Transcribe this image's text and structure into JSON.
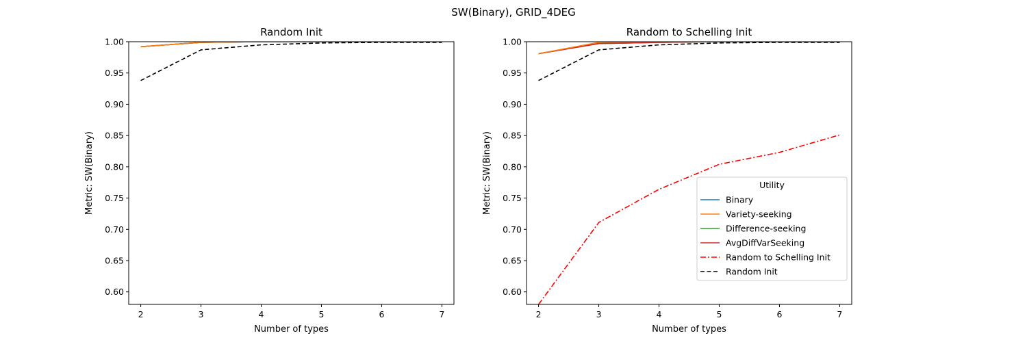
{
  "figure": {
    "title": "SW(Binary), GRID_4DEG"
  },
  "colors": {
    "Binary": "#1f77b4",
    "Variety-seeking": "#ff7f0e",
    "Difference-seeking": "#2ca02c",
    "AvgDiffVarSeeking": "#d62728",
    "Random to Schelling Init": "#ff0000",
    "Random Init": "#000000"
  },
  "legend": {
    "title": "Utility",
    "location": "lower-right of right panel",
    "entries": [
      {
        "label": "Binary",
        "style": "solid"
      },
      {
        "label": "Variety-seeking",
        "style": "solid"
      },
      {
        "label": "Difference-seeking",
        "style": "solid"
      },
      {
        "label": "AvgDiffVarSeeking",
        "style": "solid"
      },
      {
        "label": "Random to Schelling Init",
        "style": "dashdot"
      },
      {
        "label": "Random Init",
        "style": "dashed"
      }
    ]
  },
  "chart_data": [
    {
      "type": "line",
      "title": "Random Init",
      "xlabel": "Number of types",
      "ylabel": "Metric: SW(Binary)",
      "x": [
        2,
        3,
        4,
        5,
        6,
        7
      ],
      "xlim": [
        1.8,
        7.2
      ],
      "ylim": [
        0.58,
        1.0
      ],
      "xticks": [
        "2",
        "3",
        "4",
        "5",
        "6",
        "7"
      ],
      "yticks": [
        "0.60",
        "0.65",
        "0.70",
        "0.75",
        "0.80",
        "0.85",
        "0.90",
        "0.95",
        "1.00"
      ],
      "grid": false,
      "series": [
        {
          "name": "Binary",
          "style": "solid",
          "values": [
            0.992,
            0.999,
            1.0,
            1.0,
            1.0,
            1.0
          ]
        },
        {
          "name": "Difference-seeking",
          "style": "solid",
          "values": [
            0.992,
            0.999,
            1.0,
            1.0,
            1.0,
            1.0
          ]
        },
        {
          "name": "AvgDiffVarSeeking",
          "style": "solid",
          "values": [
            0.992,
            0.999,
            1.0,
            1.0,
            1.0,
            1.0
          ]
        },
        {
          "name": "Variety-seeking",
          "style": "solid",
          "values": [
            0.992,
            0.999,
            1.0,
            1.0,
            1.0,
            1.0
          ]
        },
        {
          "name": "Random Init",
          "style": "dashed",
          "values": [
            0.938,
            0.987,
            0.995,
            0.998,
            0.999,
            0.999
          ]
        }
      ]
    },
    {
      "type": "line",
      "title": "Random to Schelling Init",
      "xlabel": "Number of types",
      "ylabel": "Metric: SW(Binary)",
      "x": [
        2,
        3,
        4,
        5,
        6,
        7
      ],
      "xlim": [
        1.8,
        7.2
      ],
      "ylim": [
        0.58,
        1.0
      ],
      "xticks": [
        "2",
        "3",
        "4",
        "5",
        "6",
        "7"
      ],
      "yticks": [
        "0.60",
        "0.65",
        "0.70",
        "0.75",
        "0.80",
        "0.85",
        "0.90",
        "0.95",
        "1.00"
      ],
      "grid": false,
      "series": [
        {
          "name": "Binary",
          "style": "solid",
          "values": [
            0.981,
            0.997,
            0.999,
            1.0,
            1.0,
            1.0
          ]
        },
        {
          "name": "Difference-seeking",
          "style": "solid",
          "values": [
            0.981,
            0.997,
            0.999,
            1.0,
            1.0,
            1.0
          ]
        },
        {
          "name": "AvgDiffVarSeeking",
          "style": "solid",
          "values": [
            0.981,
            0.997,
            0.999,
            1.0,
            1.0,
            1.0
          ]
        },
        {
          "name": "Variety-seeking",
          "style": "solid",
          "values": [
            0.981,
            0.999,
            1.0,
            1.0,
            1.0,
            1.0
          ]
        },
        {
          "name": "Random to Schelling Init",
          "style": "dashdot",
          "values": [
            0.58,
            0.711,
            0.764,
            0.804,
            0.823,
            0.851
          ]
        },
        {
          "name": "Random Init",
          "style": "dashed",
          "values": [
            0.938,
            0.987,
            0.995,
            0.998,
            0.999,
            0.999
          ]
        }
      ]
    }
  ]
}
